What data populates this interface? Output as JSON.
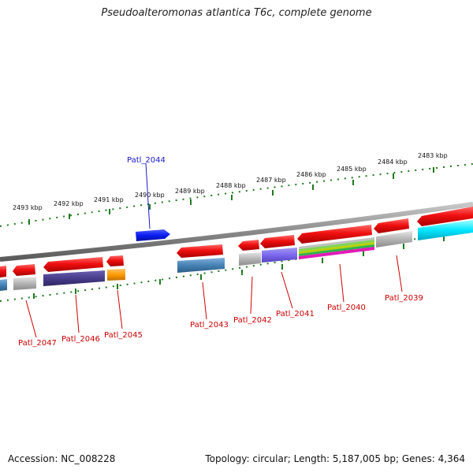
{
  "title": "Pseudoalteromonas atlantica T6c, complete genome",
  "footer": {
    "accession": "Accession: NC_008228",
    "summary": "Topology: circular; Length: 5,187,005 bp; Genes: 4,364"
  },
  "colors": {
    "forward_gene": "#ee1111",
    "highlight_gene": "#0b1ef0",
    "backbone": "#8a8a8a",
    "ruler": "#1f7a1f",
    "label_red": "#cc0000",
    "label_blue": "#1a1acc"
  },
  "kbp_labels": [
    "2493 kbp",
    "2492 kbp",
    "2491 kbp",
    "2490 kbp",
    "2489 kbp",
    "2488 kbp",
    "2487 kbp",
    "2486 kbp",
    "2485 kbp",
    "2484 kbp",
    "2483 kbp"
  ],
  "gene_labels": [
    {
      "text": "Patl_2044",
      "color": "blue"
    },
    {
      "text": "Patl_2047",
      "color": "red"
    },
    {
      "text": "Patl_2046",
      "color": "red"
    },
    {
      "text": "Patl_2045",
      "color": "red"
    },
    {
      "text": "Patl_2043",
      "color": "red"
    },
    {
      "text": "Patl_2042",
      "color": "red"
    },
    {
      "text": "Patl_2041",
      "color": "red"
    },
    {
      "text": "Patl_2040",
      "color": "red"
    },
    {
      "text": "Patl_2039",
      "color": "red"
    }
  ]
}
